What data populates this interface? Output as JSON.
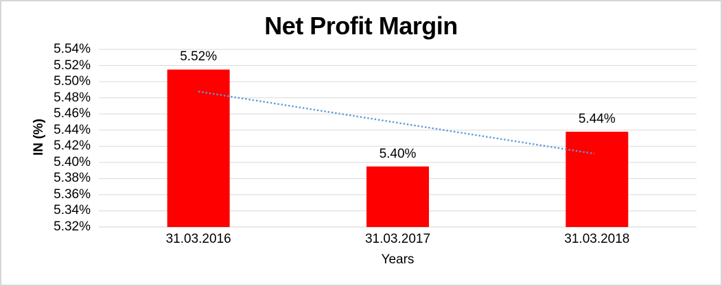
{
  "chart_data": {
    "type": "bar",
    "title": "Net Profit Margin",
    "categories": [
      "31.03.2016",
      "31.03.2017",
      "31.03.2018"
    ],
    "values": [
      5.515,
      5.395,
      5.438
    ],
    "data_labels": [
      "5.52%",
      "5.40%",
      "5.44%"
    ],
    "xlabel": "Years",
    "ylabel": "IN (%)",
    "ylim": [
      5.32,
      5.54
    ],
    "ytick_step": 0.02,
    "ytick_labels": [
      "5.32%",
      "5.34%",
      "5.36%",
      "5.38%",
      "5.40%",
      "5.42%",
      "5.44%",
      "5.46%",
      "5.48%",
      "5.50%",
      "5.52%",
      "5.54%"
    ],
    "grid": true,
    "legend": false,
    "bar_color": "#ff0000",
    "gridline_color": "#d9d9d9",
    "axis_line_color": "#d0d0d0",
    "text_color": "#000000",
    "trendline": {
      "type": "linear",
      "style": "dotted",
      "color": "#5b9bd5",
      "start_value": 5.488,
      "end_value": 5.411
    }
  }
}
